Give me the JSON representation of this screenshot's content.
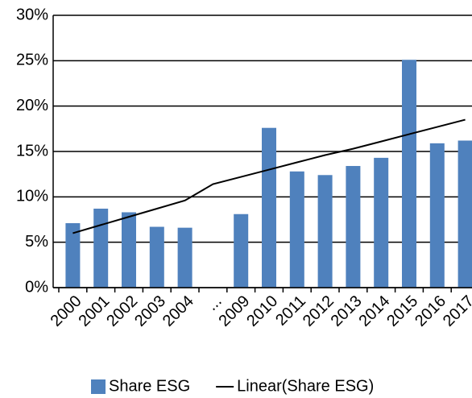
{
  "chart_data": {
    "type": "bar",
    "categories": [
      "2000",
      "2001",
      "2002",
      "2003",
      "2004",
      "...",
      "2009",
      "2010",
      "2011",
      "2012",
      "2013",
      "2014",
      "2015",
      "2016",
      "2017"
    ],
    "series": [
      {
        "name": "Share ESG",
        "type": "bar",
        "color": "#4f81bd",
        "values": [
          7.1,
          8.7,
          8.3,
          6.7,
          6.6,
          null,
          8.1,
          17.6,
          12.8,
          12.4,
          13.4,
          14.3,
          25.1,
          15.9,
          16.2
        ]
      },
      {
        "name": "Linear(Share ESG)",
        "type": "line",
        "color": "#000000",
        "values": [
          6.0,
          6.9,
          7.8,
          8.7,
          9.6,
          11.4,
          12.2,
          13.0,
          13.8,
          14.6,
          15.3,
          16.1,
          16.9,
          17.7,
          18.5
        ]
      }
    ],
    "ylim": [
      0,
      30
    ],
    "yticks": [
      {
        "value": 0,
        "label": "0%"
      },
      {
        "value": 5,
        "label": "5%"
      },
      {
        "value": 10,
        "label": "10%"
      },
      {
        "value": 15,
        "label": "15%"
      },
      {
        "value": 20,
        "label": "20%"
      },
      {
        "value": 25,
        "label": "25%"
      },
      {
        "value": 30,
        "label": "30%"
      }
    ],
    "grid": true,
    "legend": "bottom"
  }
}
